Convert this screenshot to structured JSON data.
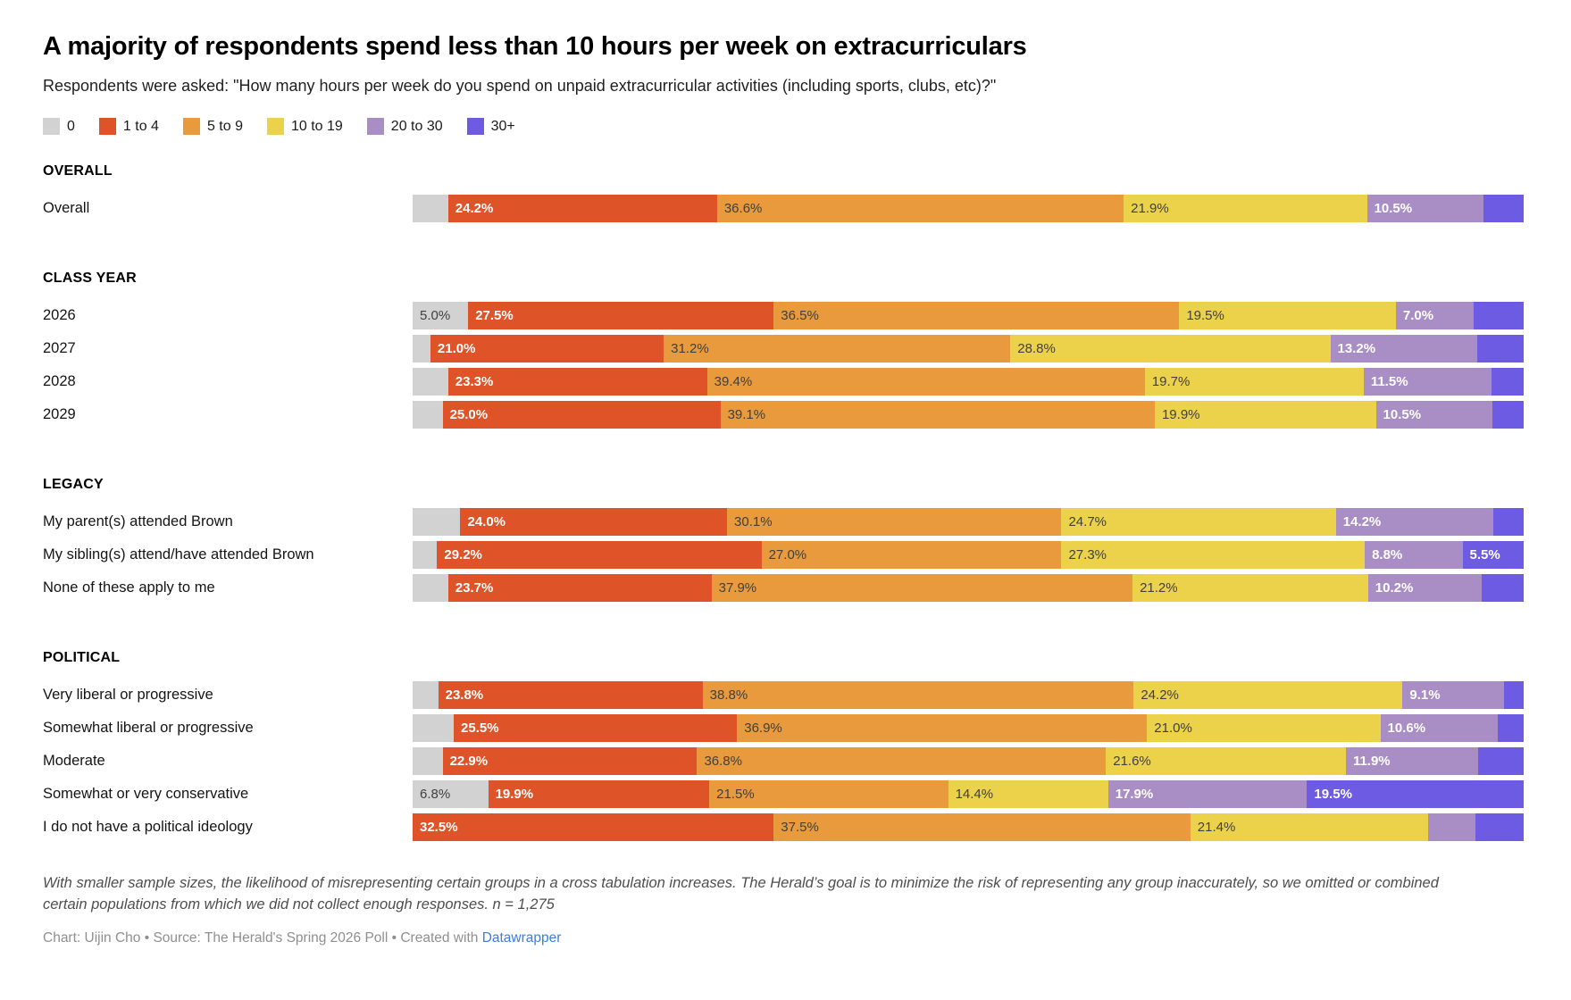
{
  "title": "A majority of respondents spend less than 10 hours per week on extracurriculars",
  "subtitle": "Respondents were asked: \"How many hours per week do you spend on unpaid extracurricular activities (including sports, clubs, etc)?\"",
  "colors": {
    "segment_gray": "#d2d2d2",
    "segment_red": "#de5327",
    "segment_orange": "#e89a3c",
    "segment_yellow": "#ecd24a",
    "segment_purple": "#a98ec6",
    "segment_blue": "#6e5be3",
    "label_dark": "#404040",
    "label_light": "#ffffff",
    "byline_link": "#3c7fd9"
  },
  "legend": {
    "items": [
      {
        "label": "0",
        "color": "#d2d2d2"
      },
      {
        "label": "1 to 4",
        "color": "#de5327"
      },
      {
        "label": "5 to 9",
        "color": "#e89a3c"
      },
      {
        "label": "10 to 19",
        "color": "#ecd24a"
      },
      {
        "label": "20 to 30",
        "color": "#a98ec6"
      },
      {
        "label": "30+",
        "color": "#6e5be3"
      }
    ]
  },
  "chart_data": {
    "type": "bar",
    "variant": "stacked-horizontal",
    "unit": "percent",
    "x_range": [
      0,
      100
    ],
    "legend_position": "top",
    "categories": [
      "0",
      "1 to 4",
      "5 to 9",
      "10 to 19",
      "20 to 30",
      "30+"
    ],
    "segment_colors": [
      "#d2d2d2",
      "#de5327",
      "#e89a3c",
      "#ecd24a",
      "#a98ec6",
      "#6e5be3"
    ],
    "label_styles": [
      "dark",
      "light",
      "dark",
      "dark",
      "light",
      "light"
    ],
    "sections": [
      {
        "header": "OVERALL",
        "rows": [
          {
            "label": "Overall",
            "values": [
              3.2,
              24.2,
              36.6,
              21.9,
              10.5,
              3.6
            ],
            "value_labels": [
              "",
              "24.2%",
              "36.6%",
              "21.9%",
              "10.5%",
              ""
            ]
          }
        ]
      },
      {
        "header": "CLASS YEAR",
        "rows": [
          {
            "label": "2026",
            "values": [
              5.0,
              27.5,
              36.5,
              19.5,
              7.0,
              4.5
            ],
            "value_labels": [
              "5.0%",
              "27.5%",
              "36.5%",
              "19.5%",
              "7.0%",
              ""
            ]
          },
          {
            "label": "2027",
            "values": [
              1.6,
              21.0,
              31.2,
              28.8,
              13.2,
              4.2
            ],
            "value_labels": [
              "",
              "21.0%",
              "31.2%",
              "28.8%",
              "13.2%",
              ""
            ]
          },
          {
            "label": "2028",
            "values": [
              3.2,
              23.3,
              39.4,
              19.7,
              11.5,
              2.9
            ],
            "value_labels": [
              "",
              "23.3%",
              "39.4%",
              "19.7%",
              "11.5%",
              ""
            ]
          },
          {
            "label": "2029",
            "values": [
              2.7,
              25.0,
              39.1,
              19.9,
              10.5,
              2.8
            ],
            "value_labels": [
              "",
              "25.0%",
              "39.1%",
              "19.9%",
              "10.5%",
              ""
            ]
          }
        ]
      },
      {
        "header": "LEGACY",
        "rows": [
          {
            "label": "My parent(s) attended Brown",
            "values": [
              4.3,
              24.0,
              30.1,
              24.7,
              14.2,
              2.7
            ],
            "value_labels": [
              "",
              "24.0%",
              "30.1%",
              "24.7%",
              "14.2%",
              ""
            ]
          },
          {
            "label": "My sibling(s) attend/have attended Brown",
            "values": [
              2.2,
              29.2,
              27.0,
              27.3,
              8.8,
              5.5
            ],
            "value_labels": [
              "",
              "29.2%",
              "27.0%",
              "27.3%",
              "8.8%",
              "5.5%"
            ]
          },
          {
            "label": "None of these apply to me",
            "values": [
              3.2,
              23.7,
              37.9,
              21.2,
              10.2,
              3.8
            ],
            "value_labels": [
              "",
              "23.7%",
              "37.9%",
              "21.2%",
              "10.2%",
              ""
            ]
          }
        ]
      },
      {
        "header": "POLITICAL",
        "rows": [
          {
            "label": "Very liberal or progressive",
            "values": [
              2.3,
              23.8,
              38.8,
              24.2,
              9.1,
              1.8
            ],
            "value_labels": [
              "",
              "23.8%",
              "38.8%",
              "24.2%",
              "9.1%",
              ""
            ]
          },
          {
            "label": "Somewhat liberal or progressive",
            "values": [
              3.7,
              25.5,
              36.9,
              21.0,
              10.6,
              2.3
            ],
            "value_labels": [
              "",
              "25.5%",
              "36.9%",
              "21.0%",
              "10.6%",
              ""
            ]
          },
          {
            "label": "Moderate",
            "values": [
              2.7,
              22.9,
              36.8,
              21.6,
              11.9,
              4.1
            ],
            "value_labels": [
              "",
              "22.9%",
              "36.8%",
              "21.6%",
              "11.9%",
              ""
            ]
          },
          {
            "label": "Somewhat or very conservative",
            "values": [
              6.8,
              19.9,
              21.5,
              14.4,
              17.9,
              19.5
            ],
            "value_labels": [
              "6.8%",
              "19.9%",
              "21.5%",
              "14.4%",
              "17.9%",
              "19.5%"
            ]
          },
          {
            "label": "I do not have a political ideology",
            "values": [
              0,
              32.5,
              37.5,
              21.4,
              4.3,
              4.3
            ],
            "value_labels": [
              "",
              "32.5%",
              "37.5%",
              "21.4%",
              "",
              ""
            ]
          }
        ]
      }
    ]
  },
  "footer": {
    "note": "With smaller sample sizes, the likelihood of misrepresenting certain groups in a cross tabulation increases. The Herald’s goal is to minimize the risk of representing any group inaccurately, so we omitted or combined certain populations from which we did not collect enough responses. n = 1,275",
    "byline_prefix": "Chart: Uijin Cho • Source: The Herald's Spring 2026 Poll • Created with ",
    "byline_link_label": "Datawrapper"
  }
}
